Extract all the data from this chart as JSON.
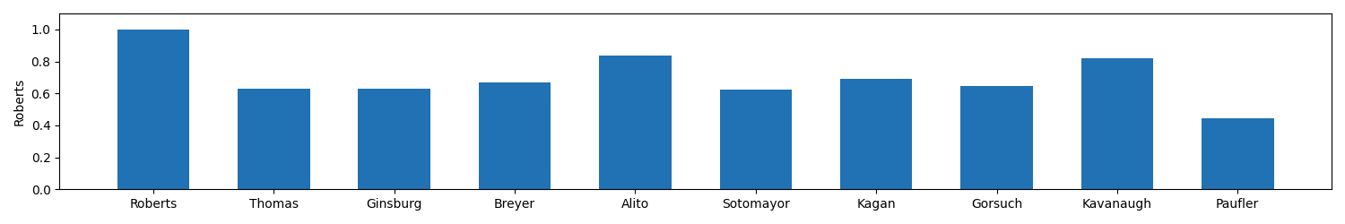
{
  "categories": [
    "Roberts",
    "Thomas",
    "Ginsburg",
    "Breyer",
    "Alito",
    "Sotomayor",
    "Kagan",
    "Gorsuch",
    "Kavanaugh",
    "Paufler"
  ],
  "values": [
    1.0,
    0.6309523809523809,
    0.6309523809523809,
    0.6666666666666666,
    0.8392857142857143,
    0.625,
    0.6904761904761905,
    0.6488095238095238,
    0.8214285714285714,
    0.44642857142857145
  ],
  "bar_color": "#2171b5",
  "ylabel": "Roberts",
  "ylim": [
    0.0,
    1.1
  ],
  "yticks": [
    0.0,
    0.2,
    0.4,
    0.6,
    0.8,
    1.0
  ],
  "background_color": "#ffffff"
}
